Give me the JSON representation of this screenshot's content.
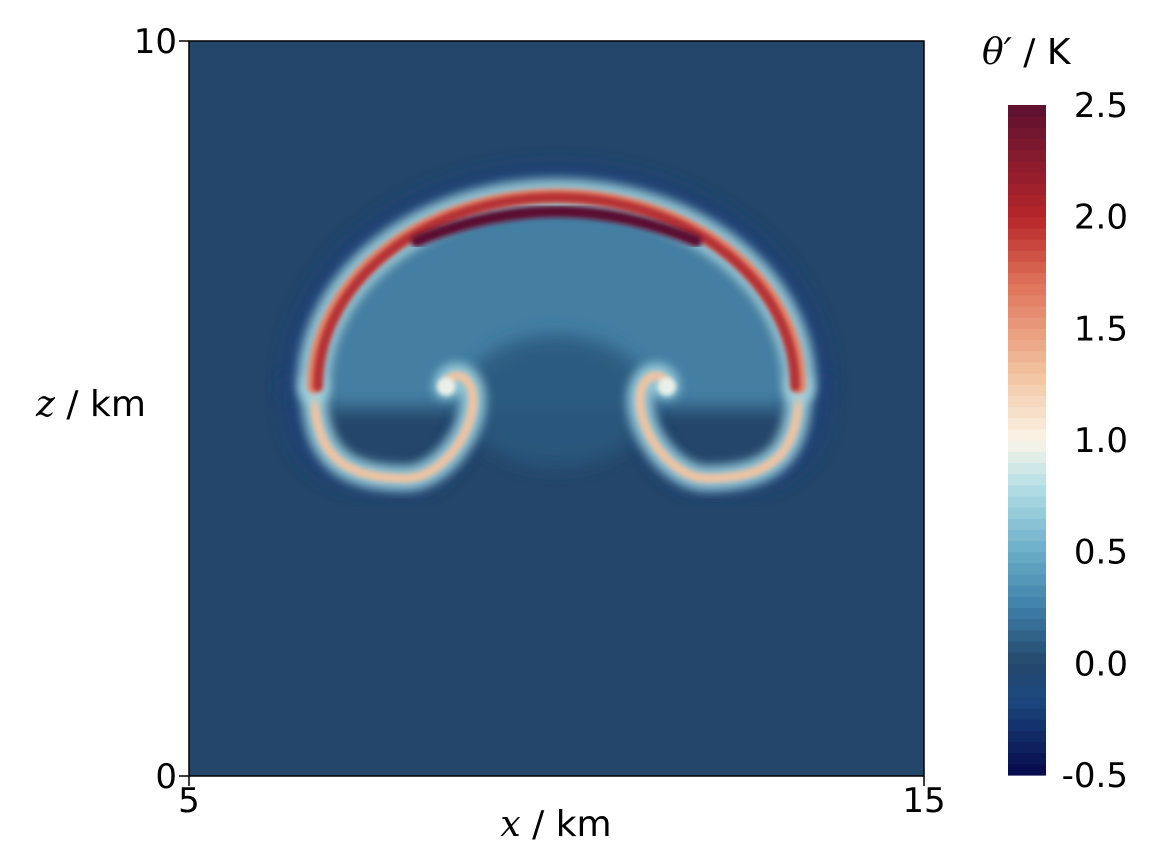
{
  "chart_data": {
    "type": "heatmap",
    "title": "",
    "x_axis": {
      "var": "x",
      "unit": "km",
      "lim": [
        5,
        15
      ],
      "ticks": [
        "5",
        "15"
      ]
    },
    "y_axis": {
      "var": "z",
      "unit": "km",
      "lim": [
        0,
        10
      ],
      "ticks": [
        "0",
        "10"
      ]
    },
    "field": {
      "var": "θ′",
      "unit": "K",
      "description": "potential temperature perturbation of a rising warm bubble with two symmetric rotors",
      "background_value": 0.0,
      "cap_apex": {
        "x": 10.0,
        "z": 7.9,
        "max_value": 2.5
      },
      "cap_arc_half_width_km": 3.3,
      "rotor_centres": [
        {
          "x": 8.5,
          "z": 5.3
        },
        {
          "x": 11.5,
          "z": 5.3
        }
      ],
      "outer_rim_min_value": -0.2
    },
    "colorbar": {
      "title": "θ′ / K",
      "min": -0.5,
      "max": 2.5,
      "tick_labels": [
        "2.5",
        "2.0",
        "1.5",
        "1.0",
        "0.5",
        "0.0",
        "-0.5"
      ],
      "tick_values": [
        2.5,
        2.0,
        1.5,
        1.0,
        0.5,
        0.0,
        -0.5
      ],
      "colormap": "Rainbow Desaturated / RdBu reversed",
      "color_stops": [
        {
          "v": -0.5,
          "c": "#05084a"
        },
        {
          "v": -0.15,
          "c": "#1d4a80"
        },
        {
          "v": 0.0,
          "c": "#24466a"
        },
        {
          "v": 0.25,
          "c": "#3d7fa8"
        },
        {
          "v": 0.5,
          "c": "#6aaec8"
        },
        {
          "v": 0.8,
          "c": "#b5dfe6"
        },
        {
          "v": 1.0,
          "c": "#fbf5e8"
        },
        {
          "v": 1.3,
          "c": "#f2c3a0"
        },
        {
          "v": 1.7,
          "c": "#e0735a"
        },
        {
          "v": 2.0,
          "c": "#b6262a"
        },
        {
          "v": 2.5,
          "c": "#5c1030"
        }
      ]
    }
  }
}
